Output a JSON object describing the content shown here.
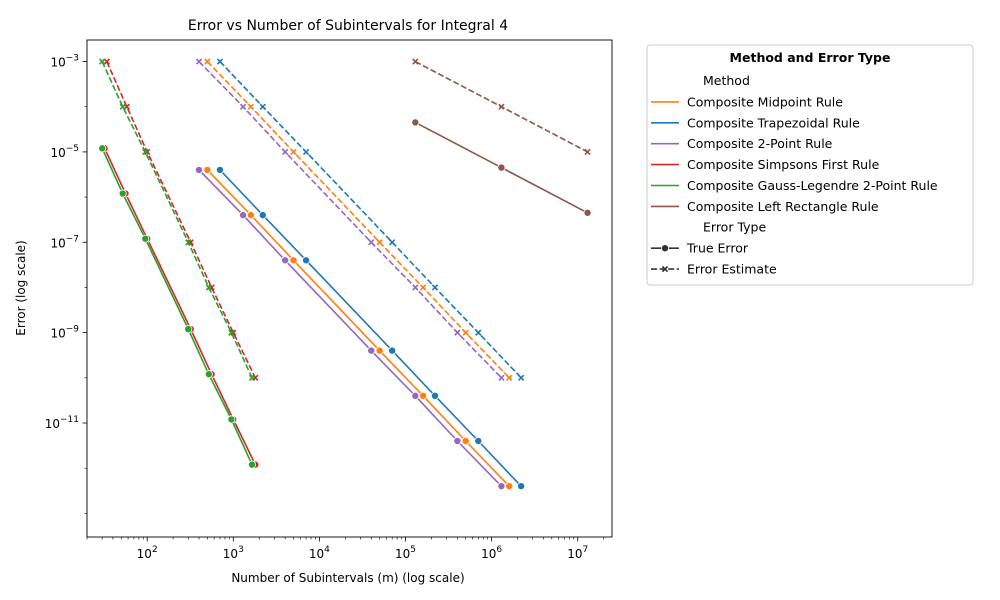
{
  "chart_data": {
    "type": "line",
    "title": "Error vs Number of Subintervals for Integral 4",
    "xlabel": "Number of Subintervals (m) (log scale)",
    "ylabel": "Error (log scale)",
    "xscale": "log",
    "yscale": "log",
    "xlim": [
      20,
      25000000
    ],
    "ylim": [
      3e-14,
      0.003
    ],
    "x_ticks": [
      {
        "value": 100,
        "mantissa": "10",
        "exp": "2"
      },
      {
        "value": 1000,
        "mantissa": "10",
        "exp": "3"
      },
      {
        "value": 10000,
        "mantissa": "10",
        "exp": "4"
      },
      {
        "value": 100000,
        "mantissa": "10",
        "exp": "5"
      },
      {
        "value": 1000000,
        "mantissa": "10",
        "exp": "6"
      },
      {
        "value": 10000000,
        "mantissa": "10",
        "exp": "7"
      }
    ],
    "y_ticks": [
      {
        "value": 0.001,
        "mantissa": "10",
        "exp": "−3"
      },
      {
        "value": 1e-05,
        "mantissa": "10",
        "exp": "−5"
      },
      {
        "value": 1e-07,
        "mantissa": "10",
        "exp": "−7"
      },
      {
        "value": 1e-09,
        "mantissa": "10",
        "exp": "−9"
      },
      {
        "value": 1e-11,
        "mantissa": "10",
        "exp": "−11"
      }
    ],
    "grid": false,
    "legend": {
      "placement": "outside-right",
      "title": "Method and Error Type",
      "method_header": "Method",
      "error_header": "Error Type",
      "error_types": [
        {
          "label": "True Error",
          "style": "solid",
          "marker": "circle"
        },
        {
          "label": "Error Estimate",
          "style": "dashed",
          "marker": "x"
        }
      ]
    },
    "series": [
      {
        "name": "Composite Midpoint Rule",
        "color": "#ff7f0e",
        "true_error": {
          "x": [
            500,
            1600,
            5000,
            50000,
            160000,
            500000,
            1600000
          ],
          "y": [
            4e-06,
            4e-07,
            4e-08,
            4e-10,
            4e-11,
            4e-12,
            4e-13
          ]
        },
        "error_estimate": {
          "x": [
            500,
            1600,
            5000,
            50000,
            160000,
            500000,
            1600000
          ],
          "y": [
            0.001,
            0.0001,
            1e-05,
            1e-07,
            1e-08,
            1e-09,
            1e-10
          ]
        }
      },
      {
        "name": "Composite Trapezoidal Rule",
        "color": "#1f77b4",
        "true_error": {
          "x": [
            700,
            2200,
            7000,
            70000,
            220000,
            700000,
            2200000
          ],
          "y": [
            4e-06,
            4e-07,
            4e-08,
            4e-10,
            4e-11,
            4e-12,
            4e-13
          ]
        },
        "error_estimate": {
          "x": [
            700,
            2200,
            7000,
            70000,
            220000,
            700000,
            2200000
          ],
          "y": [
            0.001,
            0.0001,
            1e-05,
            1e-07,
            1e-08,
            1e-09,
            1e-10
          ]
        }
      },
      {
        "name": "Composite 2-Point Rule",
        "color": "#9467bd",
        "true_error": {
          "x": [
            400,
            1300,
            4000,
            40000,
            130000,
            400000,
            1300000
          ],
          "y": [
            4e-06,
            4e-07,
            4e-08,
            4e-10,
            4e-11,
            4e-12,
            4e-13
          ]
        },
        "error_estimate": {
          "x": [
            400,
            1300,
            4000,
            40000,
            130000,
            400000,
            1300000
          ],
          "y": [
            0.001,
            0.0001,
            1e-05,
            1e-07,
            1e-08,
            1e-09,
            1e-10
          ]
        }
      },
      {
        "name": "Composite Simpsons First Rule",
        "color": "#d62728",
        "true_error": {
          "x": [
            32,
            56,
            100,
            320,
            560,
            1000,
            1800
          ],
          "y": [
            1.2e-05,
            1.2e-06,
            1.2e-07,
            1.2e-09,
            1.2e-10,
            1.2e-11,
            1.2e-12
          ]
        },
        "error_estimate": {
          "x": [
            34,
            58,
            100,
            320,
            560,
            1000,
            1800
          ],
          "y": [
            0.001,
            0.0001,
            1e-05,
            1e-07,
            1e-08,
            1e-09,
            1e-10
          ]
        }
      },
      {
        "name": "Composite Gauss-Legendre 2-Point Rule",
        "color": "#2ca02c",
        "true_error": {
          "x": [
            30,
            52,
            95,
            300,
            520,
            950,
            1650
          ],
          "y": [
            1.2e-05,
            1.2e-06,
            1.2e-07,
            1.2e-09,
            1.2e-10,
            1.2e-11,
            1.2e-12
          ]
        },
        "error_estimate": {
          "x": [
            30,
            52,
            95,
            300,
            520,
            950,
            1650
          ],
          "y": [
            0.001,
            0.0001,
            1e-05,
            1e-07,
            1e-08,
            1e-09,
            1e-10
          ]
        }
      },
      {
        "name": "Composite Left Rectangle Rule",
        "color": "#8c564b",
        "true_error": {
          "x": [
            130000,
            1300000,
            13000000
          ],
          "y": [
            4.5e-05,
            4.5e-06,
            4.5e-07
          ]
        },
        "error_estimate": {
          "x": [
            130000,
            1300000,
            13000000
          ],
          "y": [
            0.001,
            0.0001,
            1e-05
          ]
        }
      }
    ]
  }
}
